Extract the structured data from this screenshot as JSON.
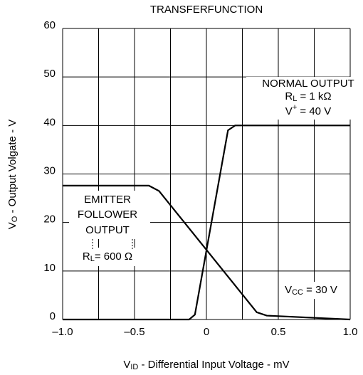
{
  "chart_data": {
    "type": "line",
    "title": "TRANSFERFUNCTION",
    "x_label": [
      "V",
      "ID",
      " - Differential Input Voltage - mV"
    ],
    "y_label": [
      "V",
      "O",
      " - Output Volgate - V"
    ],
    "xlim": [
      -1,
      1
    ],
    "ylim": [
      0,
      60
    ],
    "xticks": [
      {
        "value": -1,
        "label": "–1.0"
      },
      {
        "value": -0.5,
        "label": "–0.5"
      },
      0,
      {
        "value": 0.5,
        "label": "0.5"
      },
      {
        "value": 1,
        "label": "1.0"
      }
    ],
    "xgrid": [
      -1,
      -0.75,
      -0.5,
      -0.25,
      0,
      0.25,
      0.5,
      0.75,
      1
    ],
    "yticks": [
      0,
      10,
      20,
      30,
      40,
      50,
      60
    ],
    "grid": true,
    "series": [
      {
        "color": "#000000",
        "x": [
          -1,
          -0.12,
          -0.08,
          0.15,
          0.2,
          1
        ],
        "values": [
          0,
          0,
          1,
          39,
          40,
          40
        ]
      },
      {
        "color": "#000000",
        "x": [
          -1,
          -0.4,
          -0.33,
          0.35,
          0.42,
          1
        ],
        "values": [
          27.6,
          27.6,
          26.5,
          1.5,
          0.8,
          0
        ]
      }
    ],
    "annotations": [
      [
        "NORMAL OUTPUT"
      ],
      [
        "R",
        "L",
        " = 1 kΩ"
      ],
      [
        "V",
        "+",
        " = 40 V"
      ],
      [
        "EMITTER"
      ],
      [
        "FOLLOWER"
      ],
      [
        "OUTPUT"
      ],
      [
        "R",
        "L",
        "= 600 Ω"
      ],
      [
        "V",
        "CC",
        " = 30 V"
      ]
    ]
  }
}
